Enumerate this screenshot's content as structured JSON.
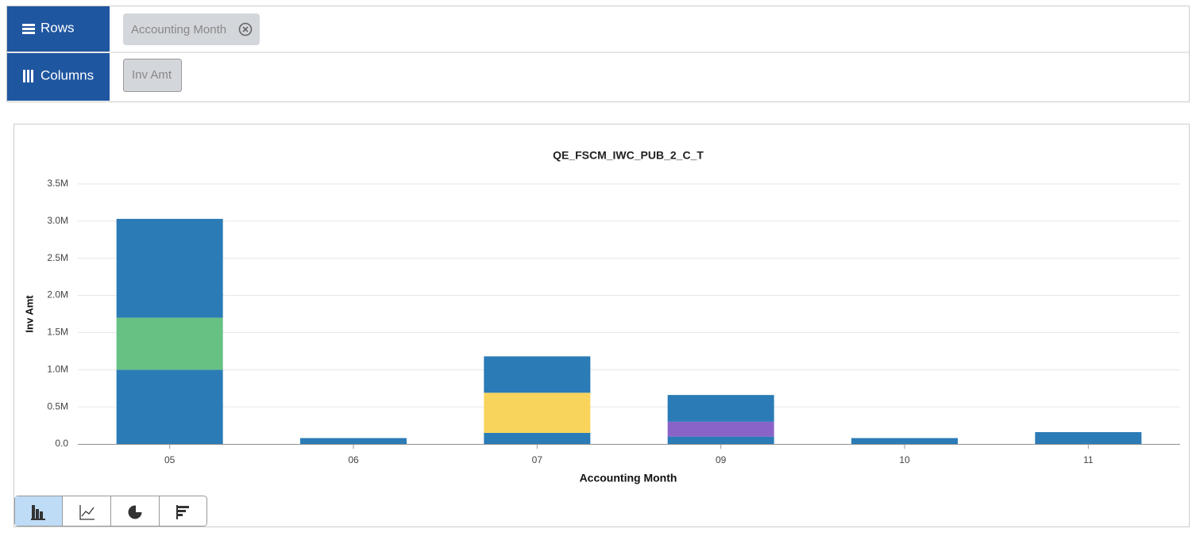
{
  "toolbar": {
    "rows_label": "Rows",
    "rows_chips": [
      "Accounting Month"
    ],
    "columns_label": "Columns",
    "columns_chips": [
      "Inv Amt"
    ]
  },
  "chart_data": {
    "type": "bar",
    "stacked": true,
    "title": "QE_FSCM_IWC_PUB_2_C_T",
    "x_label": "Accounting Month",
    "y_label": "Inv Amt",
    "categories": [
      "05",
      "06",
      "07",
      "09",
      "10",
      "11"
    ],
    "series": [
      {
        "color": "#2a7bb6",
        "values": [
          1000000,
          80000,
          150000,
          100000,
          80000,
          160000
        ]
      },
      {
        "color": "#66c182",
        "values": [
          700000,
          null,
          null,
          null,
          null,
          null
        ]
      },
      {
        "color": "#f8d45c",
        "values": [
          null,
          null,
          540000,
          null,
          null,
          null
        ]
      },
      {
        "color": "#8a63c9",
        "values": [
          null,
          null,
          null,
          200000,
          null,
          null
        ]
      },
      {
        "color": "#2a7bb6",
        "values": [
          1330000,
          null,
          490000,
          360000,
          null,
          null
        ]
      }
    ],
    "ylim": [
      0,
      3500000
    ],
    "yticks": [
      {
        "value": 0,
        "label": "0.0"
      },
      {
        "value": 500000,
        "label": "0.5M"
      },
      {
        "value": 1000000,
        "label": "1.0M"
      },
      {
        "value": 1500000,
        "label": "1.5M"
      },
      {
        "value": 2000000,
        "label": "2.0M"
      },
      {
        "value": 2500000,
        "label": "2.5M"
      },
      {
        "value": 3000000,
        "label": "3.0M"
      },
      {
        "value": 3500000,
        "label": "3.5M"
      }
    ],
    "grid": true
  }
}
